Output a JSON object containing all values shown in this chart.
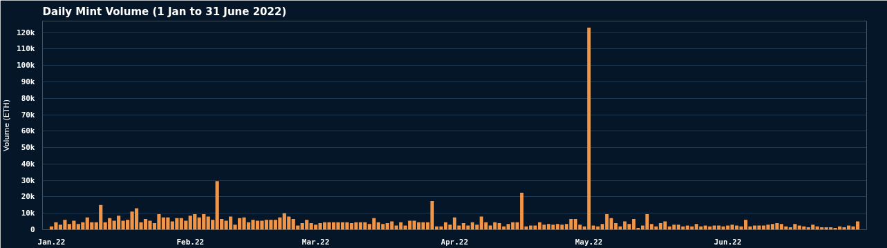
{
  "chart_data": {
    "type": "bar",
    "title": "Daily Mint Volume (1 Jan to 31 June 2022)",
    "ylabel": "Volume (ETH)",
    "x": [
      "2022-01-01",
      "2022-01-02",
      "2022-01-03",
      "2022-01-04",
      "2022-01-05",
      "2022-01-06",
      "2022-01-07",
      "2022-01-08",
      "2022-01-09",
      "2022-01-10",
      "2022-01-11",
      "2022-01-12",
      "2022-01-13",
      "2022-01-14",
      "2022-01-15",
      "2022-01-16",
      "2022-01-17",
      "2022-01-18",
      "2022-01-19",
      "2022-01-20",
      "2022-01-21",
      "2022-01-22",
      "2022-01-23",
      "2022-01-24",
      "2022-01-25",
      "2022-01-26",
      "2022-01-27",
      "2022-01-28",
      "2022-01-29",
      "2022-01-30",
      "2022-01-31",
      "2022-02-01",
      "2022-02-02",
      "2022-02-03",
      "2022-02-04",
      "2022-02-05",
      "2022-02-06",
      "2022-02-07",
      "2022-02-08",
      "2022-02-09",
      "2022-02-10",
      "2022-02-11",
      "2022-02-12",
      "2022-02-13",
      "2022-02-14",
      "2022-02-15",
      "2022-02-16",
      "2022-02-17",
      "2022-02-18",
      "2022-02-19",
      "2022-02-20",
      "2022-02-21",
      "2022-02-22",
      "2022-02-23",
      "2022-02-24",
      "2022-02-25",
      "2022-02-26",
      "2022-02-27",
      "2022-02-28",
      "2022-03-01",
      "2022-03-02",
      "2022-03-03",
      "2022-03-04",
      "2022-03-05",
      "2022-03-06",
      "2022-03-07",
      "2022-03-08",
      "2022-03-09",
      "2022-03-10",
      "2022-03-11",
      "2022-03-12",
      "2022-03-13",
      "2022-03-14",
      "2022-03-15",
      "2022-03-16",
      "2022-03-17",
      "2022-03-18",
      "2022-03-19",
      "2022-03-20",
      "2022-03-21",
      "2022-03-22",
      "2022-03-23",
      "2022-03-24",
      "2022-03-25",
      "2022-03-26",
      "2022-03-27",
      "2022-03-28",
      "2022-03-29",
      "2022-03-30",
      "2022-03-31",
      "2022-04-01",
      "2022-04-02",
      "2022-04-03",
      "2022-04-04",
      "2022-04-05",
      "2022-04-06",
      "2022-04-07",
      "2022-04-08",
      "2022-04-09",
      "2022-04-10",
      "2022-04-11",
      "2022-04-12",
      "2022-04-13",
      "2022-04-14",
      "2022-04-15",
      "2022-04-16",
      "2022-04-17",
      "2022-04-18",
      "2022-04-19",
      "2022-04-20",
      "2022-04-21",
      "2022-04-22",
      "2022-04-23",
      "2022-04-24",
      "2022-04-25",
      "2022-04-26",
      "2022-04-27",
      "2022-04-28",
      "2022-04-29",
      "2022-04-30",
      "2022-05-01",
      "2022-05-02",
      "2022-05-03",
      "2022-05-04",
      "2022-05-05",
      "2022-05-06",
      "2022-05-07",
      "2022-05-08",
      "2022-05-09",
      "2022-05-10",
      "2022-05-11",
      "2022-05-12",
      "2022-05-13",
      "2022-05-14",
      "2022-05-15",
      "2022-05-16",
      "2022-05-17",
      "2022-05-18",
      "2022-05-19",
      "2022-05-20",
      "2022-05-21",
      "2022-05-22",
      "2022-05-23",
      "2022-05-24",
      "2022-05-25",
      "2022-05-26",
      "2022-05-27",
      "2022-05-28",
      "2022-05-29",
      "2022-05-30",
      "2022-05-31",
      "2022-06-01",
      "2022-06-02",
      "2022-06-03",
      "2022-06-04",
      "2022-06-05",
      "2022-06-06",
      "2022-06-07",
      "2022-06-08",
      "2022-06-09",
      "2022-06-10",
      "2022-06-11",
      "2022-06-12",
      "2022-06-13",
      "2022-06-14",
      "2022-06-15",
      "2022-06-16",
      "2022-06-17",
      "2022-06-18",
      "2022-06-19",
      "2022-06-20",
      "2022-06-21",
      "2022-06-22",
      "2022-06-23",
      "2022-06-24",
      "2022-06-25",
      "2022-06-26",
      "2022-06-27",
      "2022-06-28",
      "2022-06-29",
      "2022-06-30"
    ],
    "values": [
      2000,
      4500,
      3000,
      6000,
      3500,
      5500,
      3500,
      4500,
      7500,
      4500,
      4500,
      15000,
      4500,
      7000,
      5500,
      8500,
      5500,
      6000,
      11000,
      13000,
      4500,
      6500,
      5500,
      4000,
      9500,
      7500,
      7500,
      5000,
      7000,
      7000,
      5500,
      8500,
      9500,
      7500,
      9500,
      8000,
      6000,
      29500,
      6500,
      5500,
      8000,
      3000,
      7000,
      7500,
      4500,
      6000,
      5500,
      5500,
      6000,
      6000,
      6000,
      7500,
      10000,
      8000,
      6500,
      2500,
      4000,
      6000,
      4000,
      3000,
      4000,
      4500,
      4500,
      4500,
      4500,
      4500,
      4500,
      4000,
      4500,
      4500,
      4500,
      3500,
      7000,
      4500,
      3500,
      4000,
      5000,
      2500,
      4500,
      2500,
      5500,
      5500,
      4500,
      4500,
      4500,
      17500,
      2000,
      2000,
      4500,
      3000,
      7500,
      2500,
      4000,
      2500,
      4500,
      3000,
      8000,
      4500,
      2500,
      4500,
      4000,
      2000,
      3500,
      4500,
      4500,
      22500,
      2000,
      2500,
      2500,
      4500,
      3000,
      3500,
      3000,
      3500,
      3000,
      3500,
      6500,
      6500,
      3000,
      2000,
      123000,
      2500,
      2000,
      3500,
      9500,
      7000,
      4000,
      2000,
      5000,
      3500,
      6500,
      1000,
      2500,
      9500,
      3500,
      2000,
      4000,
      5000,
      2000,
      3000,
      3000,
      2000,
      2500,
      2000,
      3500,
      2000,
      2500,
      2000,
      2500,
      2500,
      2000,
      2500,
      3000,
      2500,
      2000,
      6000,
      2000,
      2500,
      2500,
      2500,
      3000,
      3500,
      4000,
      3500,
      2000,
      1500,
      3500,
      2500,
      2000,
      1500,
      3000,
      2000,
      1500,
      1500,
      1500,
      1000,
      2000,
      1500,
      2500,
      2000,
      5000
    ],
    "color": "#f0964a",
    "xlim": [
      "2021-12-30",
      "2022-07-02"
    ],
    "xticks": [
      {
        "value": "2022-01-01",
        "label": "Jan.22"
      },
      {
        "value": "2022-02-01",
        "label": "Feb.22"
      },
      {
        "value": "2022-03-01",
        "label": "Mar.22"
      },
      {
        "value": "2022-04-01",
        "label": "Apr.22"
      },
      {
        "value": "2022-05-01",
        "label": "May.22"
      },
      {
        "value": "2022-06-01",
        "label": "Jun.22"
      }
    ],
    "ylim": [
      0,
      127000
    ],
    "yticks": [
      {
        "value": 0,
        "label": "0"
      },
      {
        "value": 10000,
        "label": "10k"
      },
      {
        "value": 20000,
        "label": "20k"
      },
      {
        "value": 30000,
        "label": "30k"
      },
      {
        "value": 40000,
        "label": "40k"
      },
      {
        "value": 50000,
        "label": "50k"
      },
      {
        "value": 60000,
        "label": "60k"
      },
      {
        "value": 70000,
        "label": "70k"
      },
      {
        "value": 80000,
        "label": "80k"
      },
      {
        "value": 90000,
        "label": "90k"
      },
      {
        "value": 100000,
        "label": "100k"
      },
      {
        "value": 110000,
        "label": "110k"
      },
      {
        "value": 120000,
        "label": "120k"
      }
    ],
    "grid": "y"
  }
}
